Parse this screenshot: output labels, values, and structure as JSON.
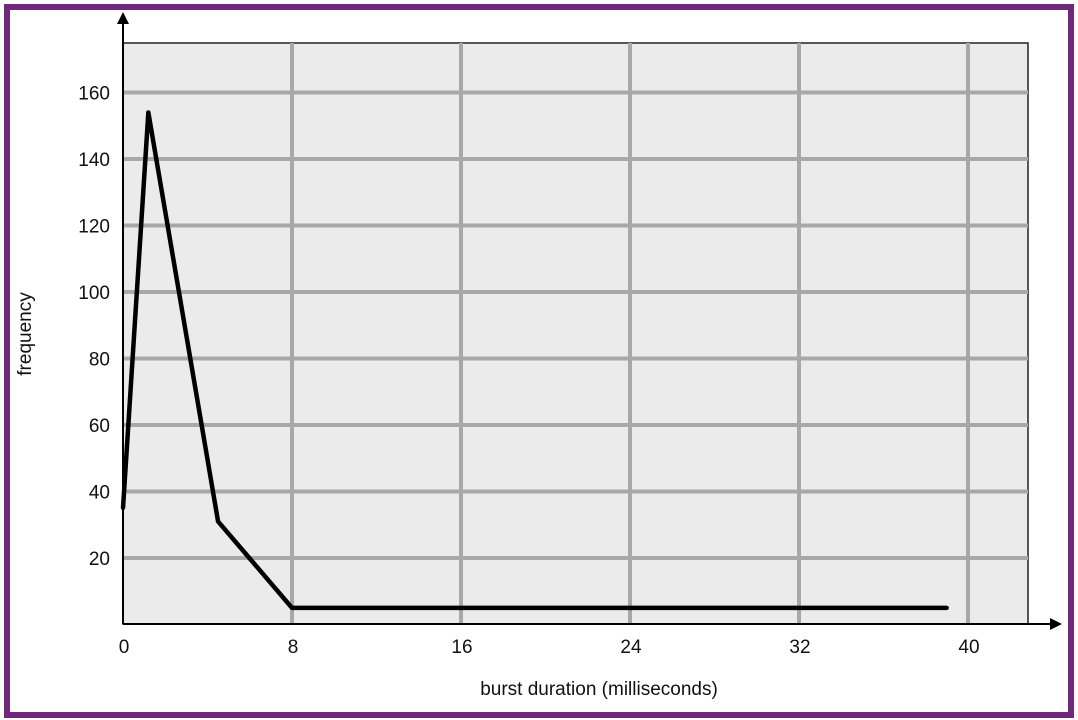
{
  "colors": {
    "frame": "#6e2a78",
    "plot_background": "#ebebeb",
    "grid": "#a8a8a8",
    "line": "#000000"
  },
  "chart_data": {
    "type": "line",
    "title": "",
    "xlabel": "burst duration (milliseconds)",
    "ylabel": "frequency",
    "xlim": [
      0,
      42.5
    ],
    "ylim": [
      0,
      175
    ],
    "xticks": [
      0,
      8,
      16,
      24,
      32,
      40
    ],
    "yticks": [
      20,
      40,
      60,
      80,
      100,
      120,
      140,
      160
    ],
    "grid": true,
    "legend": "none",
    "series": [
      {
        "x": [
          0,
          1.2,
          4.5,
          8,
          39
        ],
        "y": [
          35,
          154,
          31,
          5,
          5
        ]
      }
    ]
  }
}
